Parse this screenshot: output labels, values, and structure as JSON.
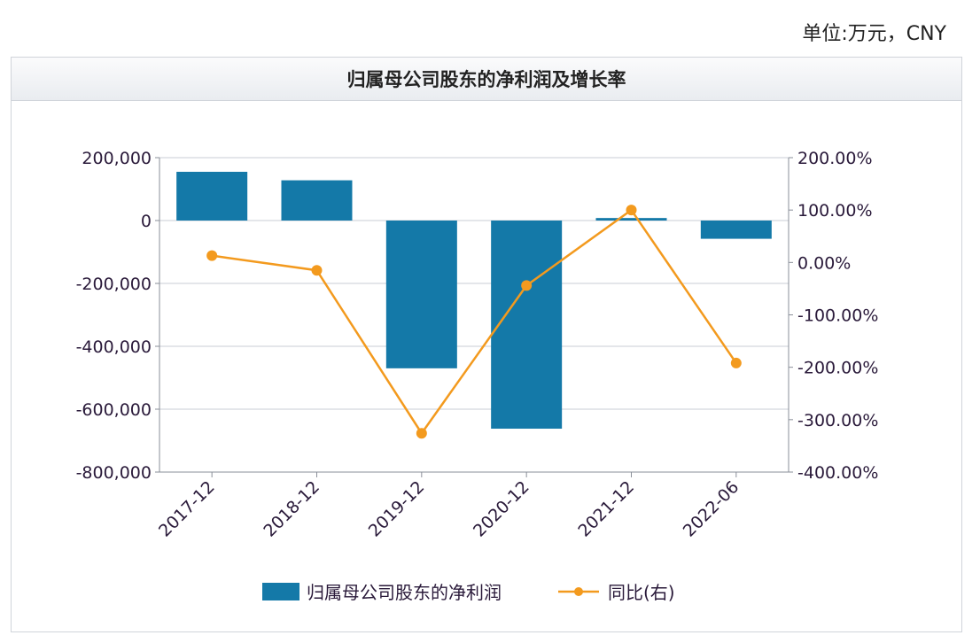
{
  "unit_note": "单位:万元，CNY",
  "chart_data": {
    "type": "bar",
    "title": "归属母公司股东的净利润及增长率",
    "categories": [
      "2017-12",
      "2018-12",
      "2019-12",
      "2020-12",
      "2021-12",
      "2022-06"
    ],
    "series": [
      {
        "name": "归属母公司股东的净利润",
        "type": "bar",
        "axis": "left",
        "color": "#1479a8",
        "values": [
          155000,
          128000,
          -470000,
          -662000,
          8000,
          -58000
        ]
      },
      {
        "name": "同比(右)",
        "type": "line",
        "axis": "right",
        "color": "#f39a1e",
        "values": [
          13,
          -15,
          -326,
          -44,
          100,
          -192
        ]
      }
    ],
    "left_axis": {
      "min": -800000,
      "max": 200000,
      "ticks": [
        200000,
        0,
        -200000,
        -400000,
        -600000,
        -800000
      ],
      "tick_labels": [
        "200,000",
        "0",
        "-200,000",
        "-400,000",
        "-600,000",
        "-800,000"
      ]
    },
    "right_axis": {
      "min": -400,
      "max": 200,
      "ticks": [
        200,
        100,
        0,
        -100,
        -200,
        -300,
        -400
      ],
      "tick_labels": [
        "200.00%",
        "100.00%",
        "0.00%",
        "-100.00%",
        "-200.00%",
        "-300.00%",
        "-400.00%"
      ]
    },
    "grid": true,
    "legend_position": "bottom"
  }
}
